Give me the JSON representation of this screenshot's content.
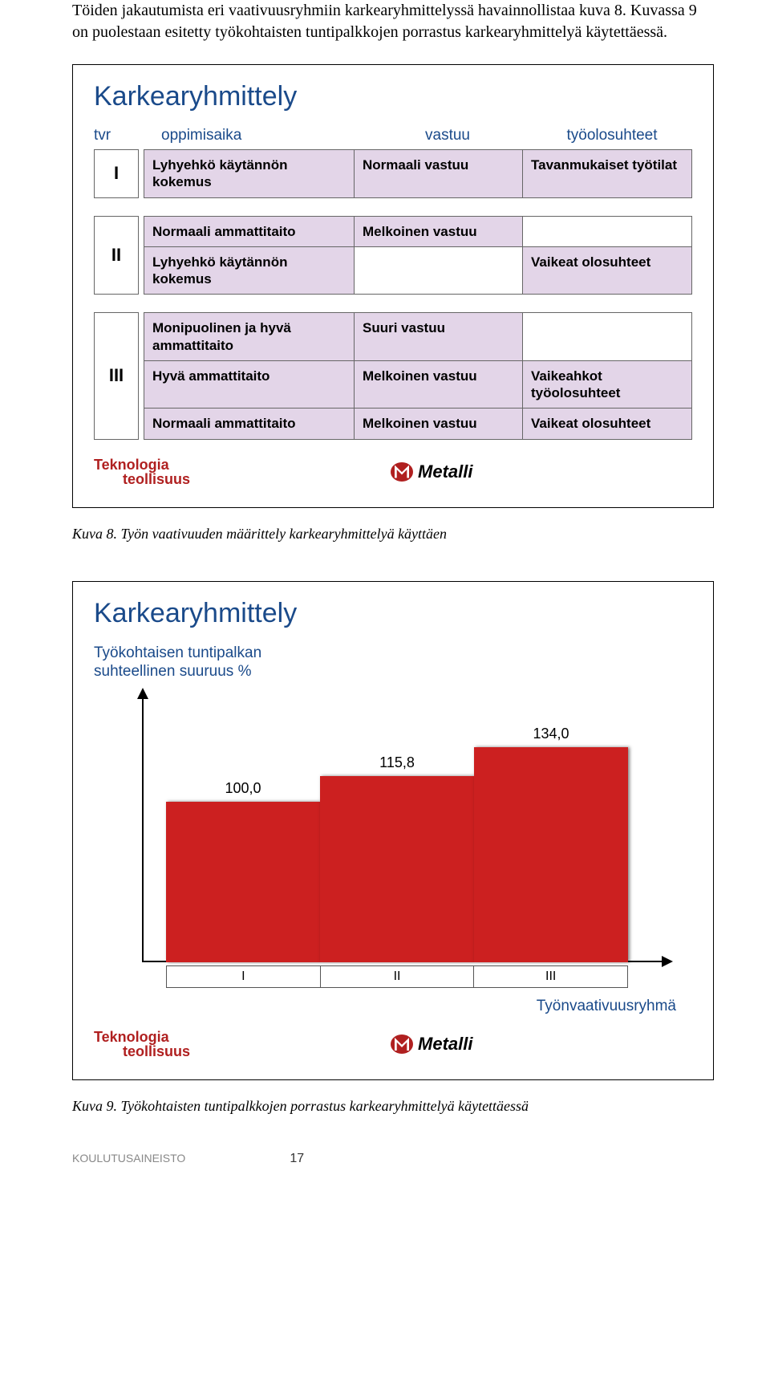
{
  "intro": "Töiden jakautumista eri vaativuusryhmiin karkearyhmittelyssä havainnollistaa kuva 8. Kuvassa 9 on puolestaan esitetty työkohtaisten tuntipalkkojen porrastus karkearyhmittelyä käytettäessä.",
  "panel1": {
    "title": "Karkearyhmittely",
    "headers": {
      "tvr": "tvr",
      "c1": "oppimisaika",
      "c2": "vastuu",
      "c3": "työolosuhteet"
    },
    "groups": [
      {
        "id": "I",
        "rows": [
          {
            "c1": "Lyhyehkö käytännön kokemus",
            "c2": "Normaali vastuu",
            "c3": "Tavanmukaiset työtilat"
          }
        ]
      },
      {
        "id": "II",
        "rows": [
          {
            "c1": "Normaali ammattitaito",
            "c2": "Melkoinen vastuu",
            "c3": ""
          },
          {
            "c1": "Lyhyehkö käytännön kokemus",
            "c2": "",
            "c3": "Vaikeat olosuhteet"
          }
        ]
      },
      {
        "id": "III",
        "rows": [
          {
            "c1": "Monipuolinen ja hyvä ammattitaito",
            "c2": "Suuri vastuu",
            "c3": ""
          },
          {
            "c1": "Hyvä ammattitaito",
            "c2": "Melkoinen vastuu",
            "c3": "Vaikeahkot työolosuhteet"
          },
          {
            "c1": "Normaali ammattitaito",
            "c2": "Melkoinen vastuu",
            "c3": "Vaikeat olosuhteet"
          }
        ]
      }
    ],
    "logos": {
      "teknologia": "Teknologia",
      "teollisuus": "teollisuus",
      "metalli": "Metalli"
    }
  },
  "caption1": "Kuva 8. Työn vaativuuden määrittely karkearyhmittelyä käyttäen",
  "panel2": {
    "title": "Karkearyhmittely",
    "subtitle1": "Työkohtaisen tuntipalkan",
    "subtitle2": "suhteellinen suuruus %",
    "chart": {
      "type": "bar",
      "categories": [
        "I",
        "II",
        "III"
      ],
      "values": [
        100.0,
        115.8,
        134.0
      ],
      "value_labels": [
        "100,0",
        "115,8",
        "134,0"
      ],
      "bar_color": "#cc2020",
      "axis_color": "#000000",
      "bg_color": "#ffffff",
      "ylim_max": 150
    },
    "xlabel": "Työnvaativuusryhmä"
  },
  "caption2": "Kuva 9. Työkohtaisten tuntipalkkojen porrastus karkearyhmittelyä käytettäessä",
  "footer": {
    "left": "KOULUTUSAINEISTO",
    "page": "17"
  }
}
